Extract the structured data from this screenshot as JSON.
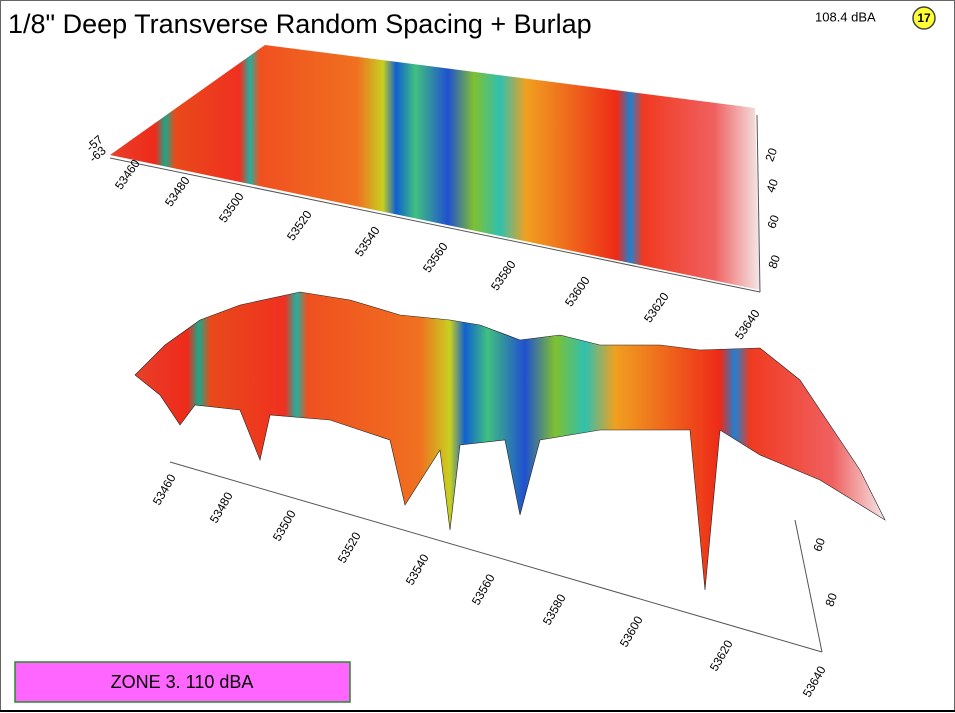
{
  "header": {
    "title": "1/8\" Deep Transverse Random Spacing + Burlap",
    "level": "108.4 dBA",
    "badge": "17"
  },
  "top_plot": {
    "z_labels": [
      "-57",
      "-63"
    ],
    "x_labels": [
      53460,
      53480,
      53500,
      53520,
      53540,
      53560,
      53580,
      53600,
      53620,
      53640
    ],
    "y_labels": [
      20,
      40,
      60,
      80
    ]
  },
  "bottom_plot": {
    "x_labels": [
      53460,
      53480,
      53500,
      53520,
      53540,
      53560,
      53580,
      53600,
      53620,
      53640
    ],
    "y_labels": [
      60,
      80
    ]
  },
  "zone": {
    "label": "ZONE 3. 110 dBA"
  }
}
